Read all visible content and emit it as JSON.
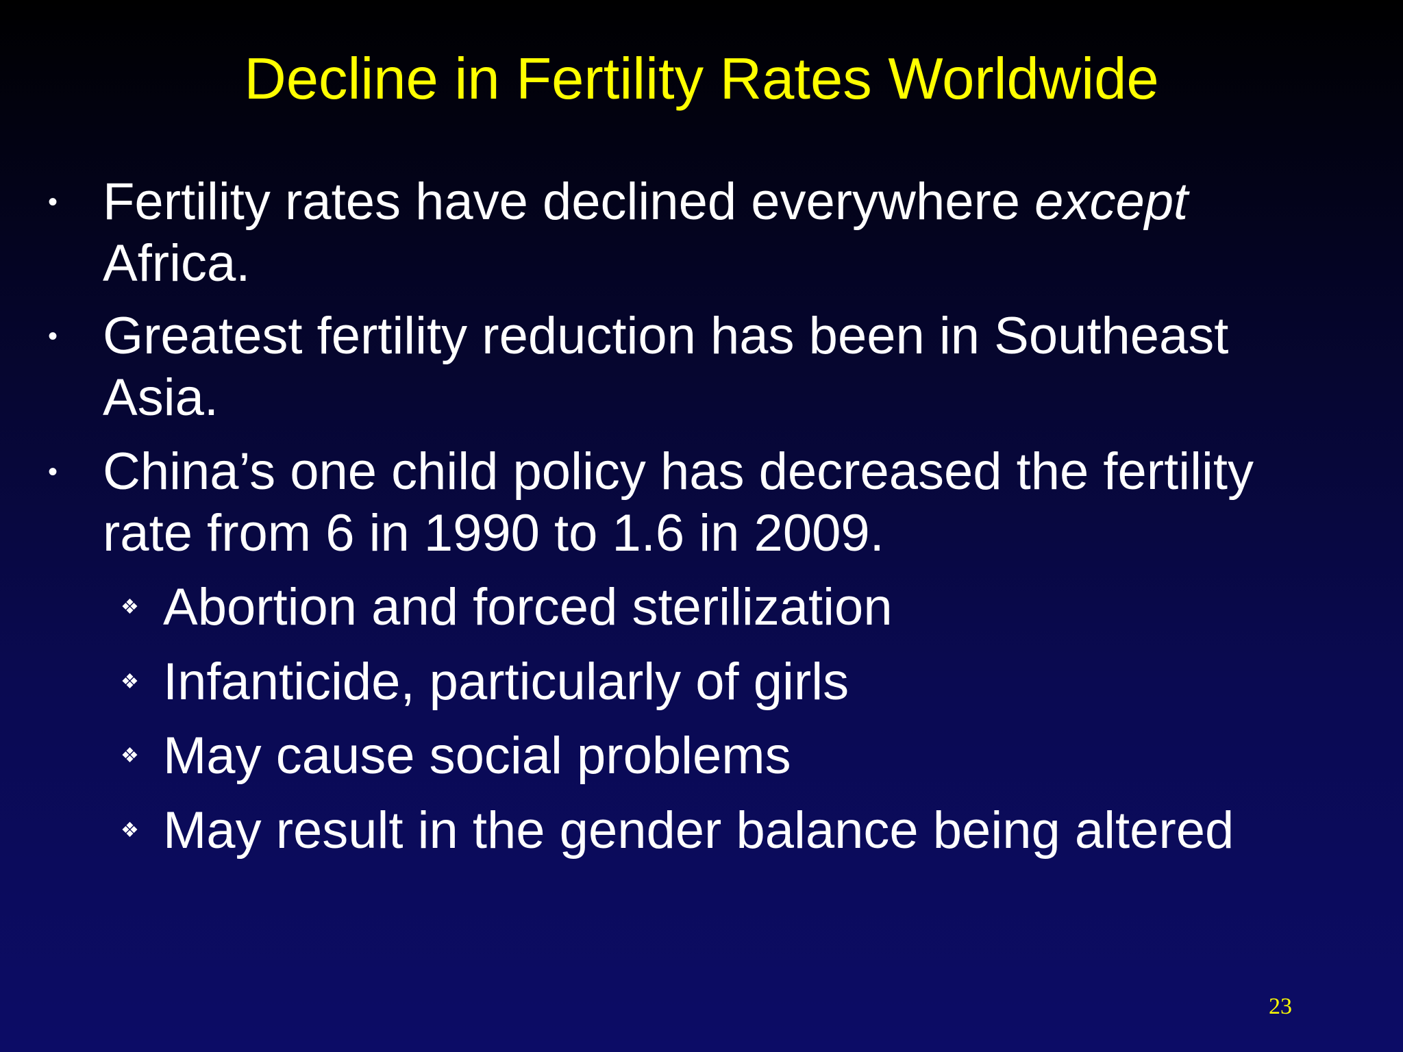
{
  "slide": {
    "title": "Decline in Fertility Rates Worldwide",
    "bullet_icon": "bullet-dot-icon",
    "sub_bullet_icon": "diamond-four-icon",
    "bullets": [
      {
        "line1_pre": "Fertility rates have declined everywhere ",
        "line1_em": "except",
        "line2": "Africa."
      },
      {
        "line1": "Greatest fertility reduction has been in Southeast",
        "line2": "Asia."
      },
      {
        "line1": "China’s one child policy has decreased the fertility",
        "line2": "rate from 6 in 1990 to 1.6 in 2009."
      }
    ],
    "sub_bullets": [
      "Abortion and forced sterilization",
      "Infanticide, particularly of girls",
      "May cause social problems",
      "May result in the gender balance being altered"
    ],
    "page_number": "23",
    "colors": {
      "title": "#ffff00",
      "text": "#ffffff",
      "page_number": "#ffff00",
      "background_top": "#000000",
      "background_bottom": "#0c0c66"
    }
  }
}
